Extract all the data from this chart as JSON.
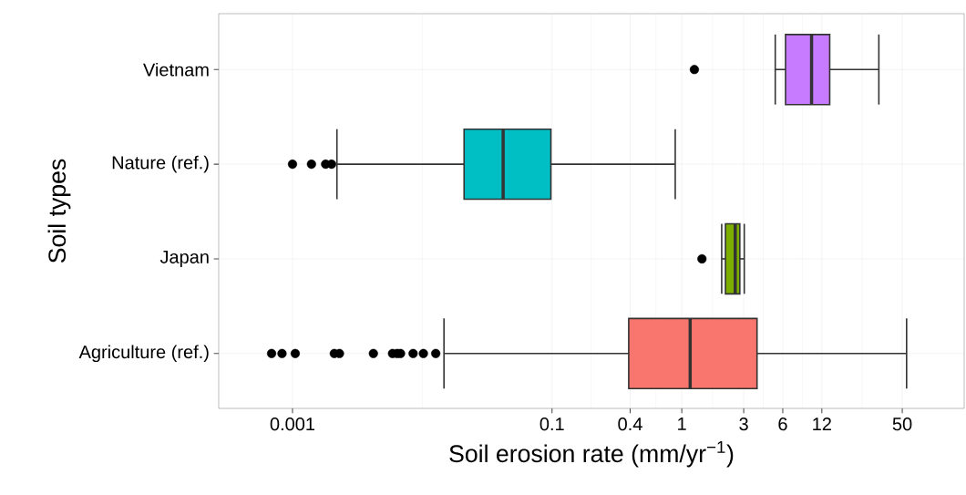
{
  "chart_data": {
    "type": "box",
    "orientation": "horizontal",
    "xlabel": "Soil erosion rate (mm/yr$^{−1}$)",
    "ylabel": "Soil types",
    "categories": [
      "Vietnam",
      "Nature (ref.)",
      "Japan",
      "Agriculture (ref.)"
    ],
    "colors": [
      "#c77cff",
      "#00bfc4",
      "#7cae00",
      "#f8766d"
    ],
    "log": "x",
    "xlim": [
      0.00027,
      150
    ],
    "xticks": [
      0.001,
      0.1,
      0.4,
      1,
      3,
      6,
      12,
      50
    ],
    "grid": true,
    "boxes": [
      {
        "low": 5.25,
        "q1": 6.3,
        "median": 10,
        "q3": 13.8,
        "high": 33,
        "outliers": [
          1.25
        ]
      },
      {
        "low": 0.0022,
        "q1": 0.021,
        "median": 0.042,
        "q3": 0.098,
        "high": 0.89,
        "outliers": [
          0.001,
          0.0014,
          0.0018,
          0.002
        ]
      },
      {
        "low": 2.03,
        "q1": 2.17,
        "median": 2.58,
        "q3": 2.8,
        "high": 3.03,
        "outliers": [
          1.43
        ]
      },
      {
        "low": 0.0147,
        "q1": 0.39,
        "median": 1.16,
        "q3": 3.8,
        "high": 54,
        "outliers": [
          0.00069,
          0.00083,
          0.00105,
          0.0021,
          0.0023,
          0.0042,
          0.0059,
          0.0064,
          0.0068,
          0.0085,
          0.0102,
          0.0127
        ]
      }
    ]
  }
}
